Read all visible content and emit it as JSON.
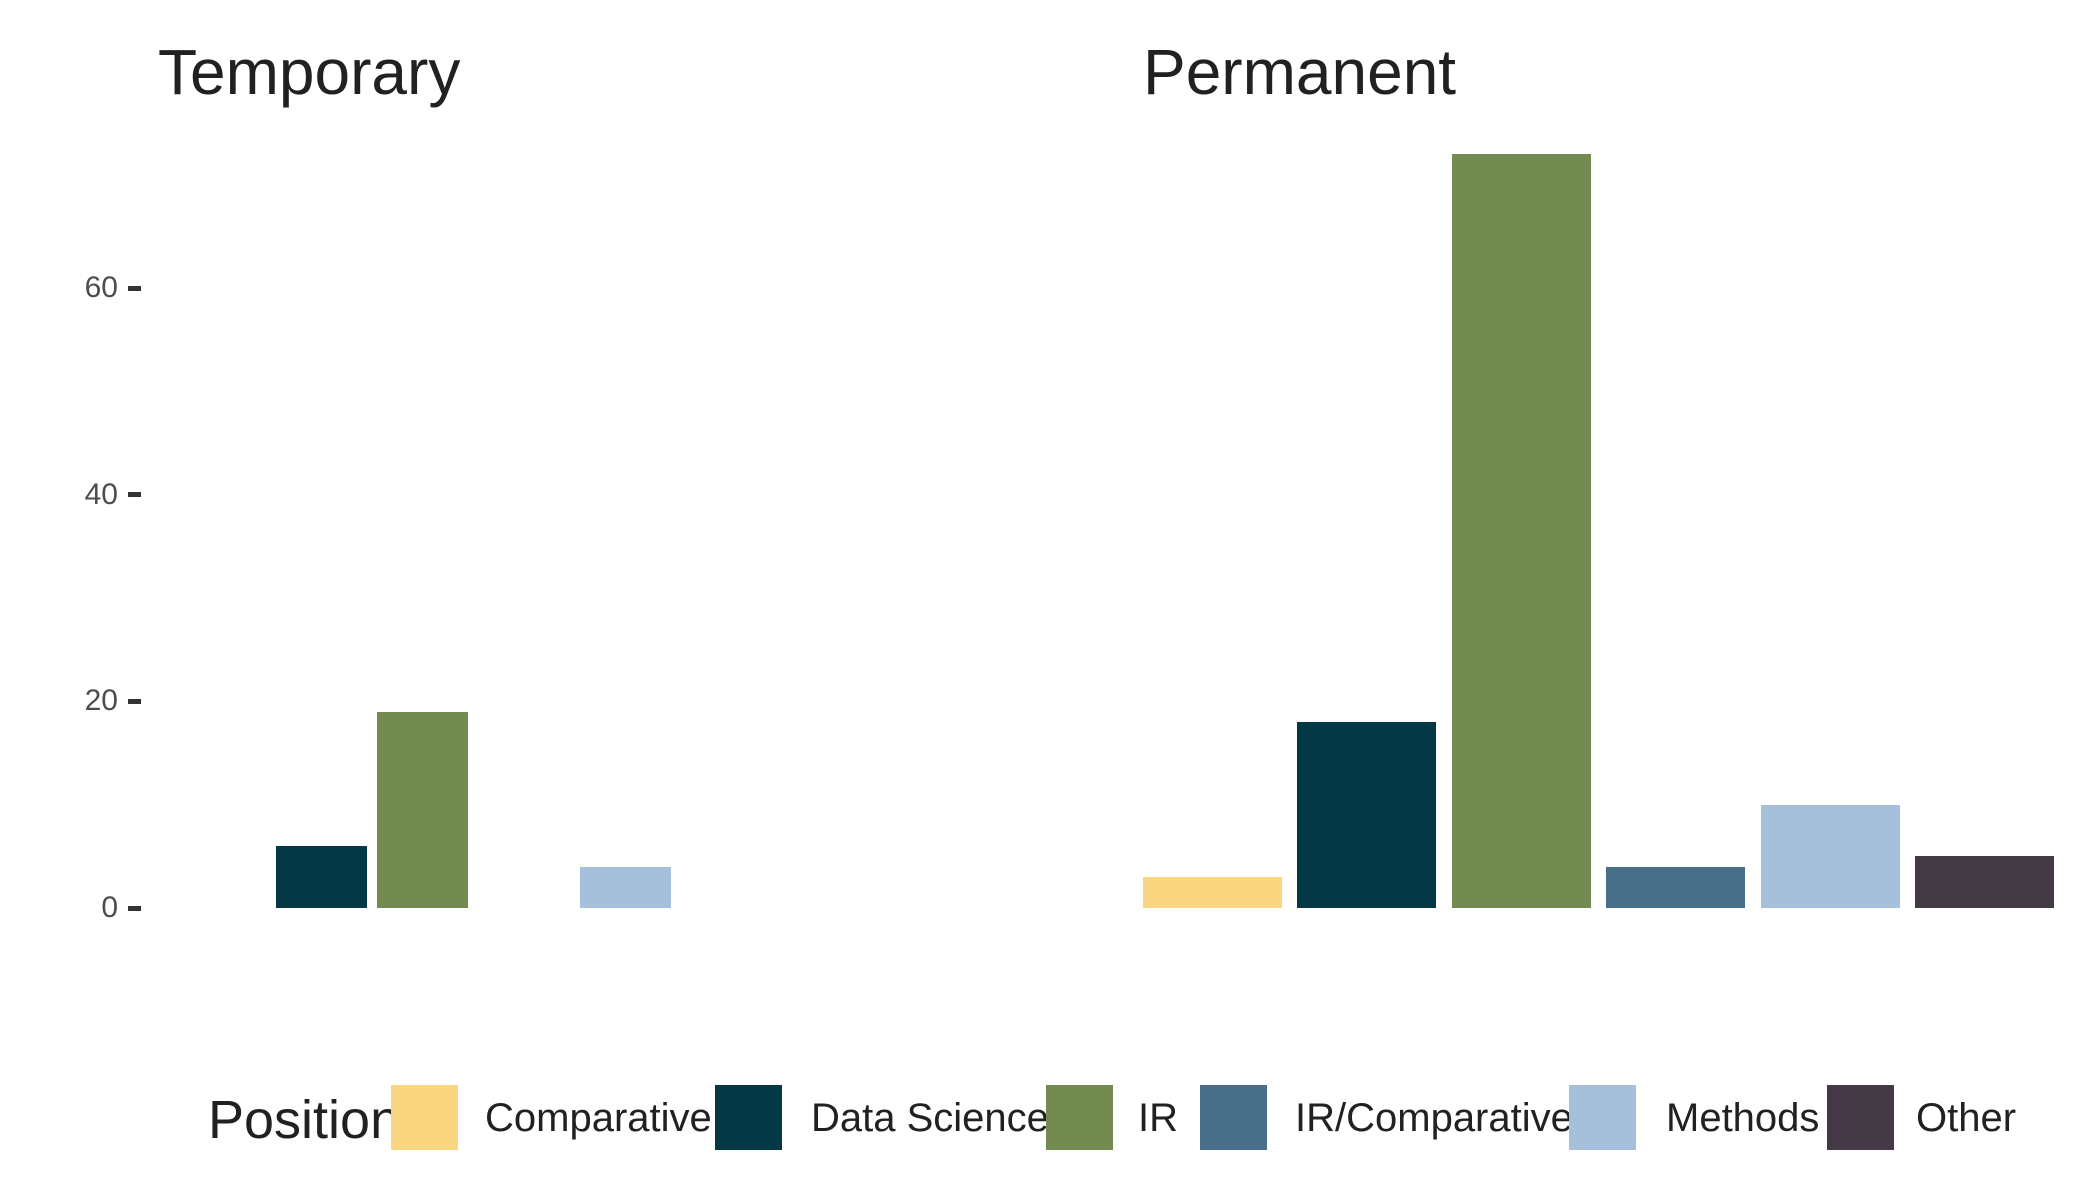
{
  "chart_data": {
    "type": "bar",
    "title": "",
    "xlabel": "",
    "ylabel": "",
    "grid": false,
    "y_ticks": [
      0,
      20,
      40,
      60
    ],
    "ylim": [
      0,
      77
    ],
    "categories": [
      "Comparative",
      "Data Science",
      "IR",
      "IR/Comparative",
      "Methods",
      "Other"
    ],
    "colors": {
      "Comparative": "#FBD681",
      "Data Science": "#043844",
      "IR": "#738B50",
      "IR/Comparative": "#476F8A",
      "Methods": "#A6C0DB",
      "Other": "#433A46"
    },
    "facets": [
      {
        "label": "Temporary",
        "values": [
          0,
          6,
          19,
          0,
          4,
          0
        ]
      },
      {
        "label": "Permanent",
        "values": [
          3,
          18,
          73,
          4,
          10,
          5
        ]
      }
    ],
    "legend": {
      "title": "Position",
      "position": "bottom",
      "entries": [
        "Comparative",
        "Data Science",
        "IR",
        "IR/Comparative",
        "Methods",
        "Other"
      ]
    }
  }
}
